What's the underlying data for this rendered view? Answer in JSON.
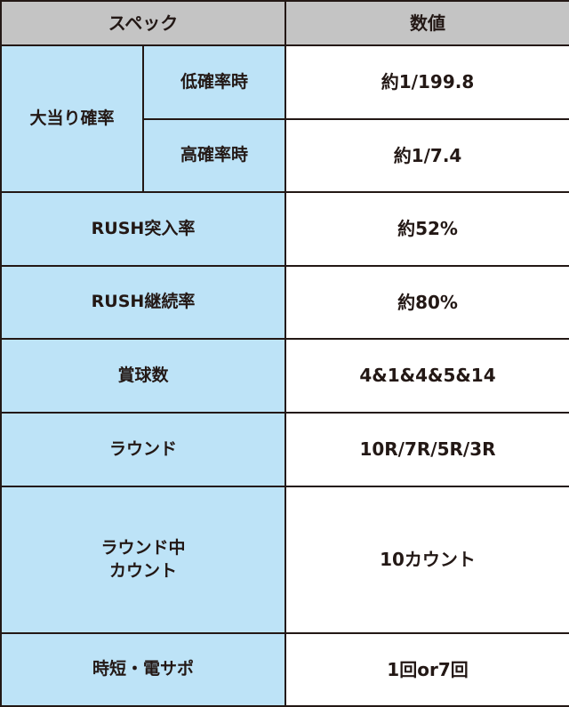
{
  "header": {
    "spec": "スペック",
    "value": "数値"
  },
  "rows": [
    {
      "label": "大当り確率",
      "sub": "低確率時",
      "value": "約1/199.8"
    },
    {
      "sub": "高確率時",
      "value": "約1/7.4"
    },
    {
      "label": "RUSH突入率",
      "value": "約52%"
    },
    {
      "label": "RUSH継続率",
      "value": "約80%"
    },
    {
      "label": "賞球数",
      "value": "4&1&4&5&14"
    },
    {
      "label": "ラウンド",
      "value": "10R/7R/5R/3R"
    },
    {
      "label": "ラウンド中\nカウント",
      "value": "10カウント"
    },
    {
      "label": "時短・電サポ",
      "value": "1回or7回"
    }
  ],
  "colors": {
    "header_bg": "#c4c4c4",
    "label_bg": "#bde3f7",
    "border": "#231815"
  }
}
